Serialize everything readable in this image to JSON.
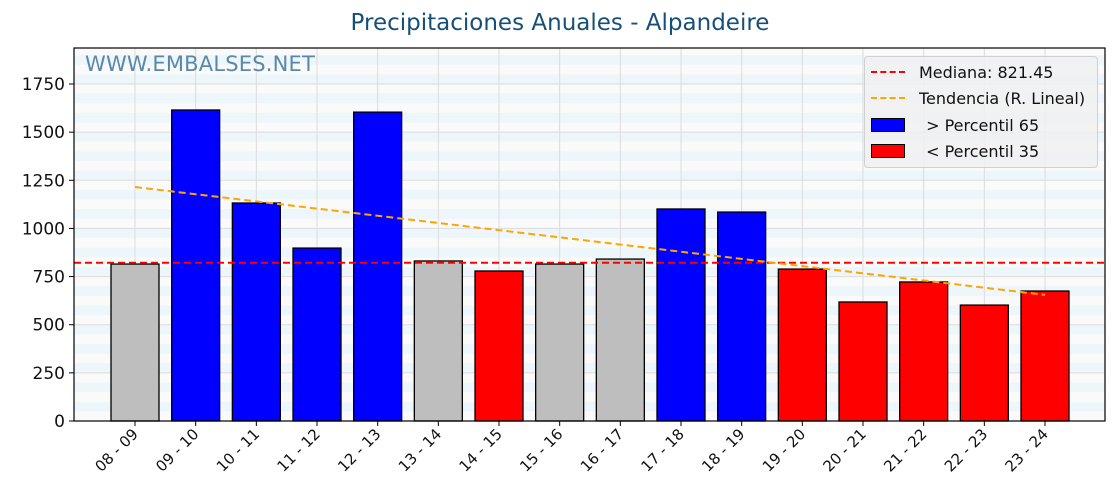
{
  "chart_data": {
    "type": "bar",
    "title": "Precipitaciones Anuales - Alpandeire",
    "watermark": "WWW.EMBALSES.NET",
    "xlabel": "",
    "ylabel": "",
    "ylim": [
      0,
      1930
    ],
    "yticks": [
      0,
      250,
      500,
      750,
      1000,
      1250,
      1500,
      1750
    ],
    "grid": true,
    "legend_position": "upper right",
    "categories": [
      "08 - 09",
      "09 - 10",
      "10 - 11",
      "11 - 12",
      "12 - 13",
      "13 - 14",
      "14 - 15",
      "15 - 16",
      "16 - 17",
      "17 - 18",
      "18 - 19",
      "19 - 20",
      "20 - 21",
      "21 - 22",
      "22 - 23",
      "23 - 24"
    ],
    "values": [
      815,
      1615,
      1132,
      898,
      1604,
      831,
      779,
      815,
      841,
      1101,
      1085,
      789,
      618,
      722,
      602,
      675
    ],
    "bar_classes": [
      "mid",
      "high",
      "high",
      "high",
      "high",
      "mid",
      "low",
      "mid",
      "mid",
      "high",
      "high",
      "low",
      "low",
      "low",
      "low",
      "low"
    ],
    "colors": {
      "high": "#0000ff",
      "low": "#ff0000",
      "mid": "#bebebe",
      "median": "#ff0000",
      "trend": "#ffa500"
    },
    "median": 821.45,
    "trend": {
      "start": 1215,
      "end": 655
    },
    "legend": [
      {
        "label": "Mediana: 821.45",
        "kind": "line",
        "color": "#ff0000"
      },
      {
        "label": "Tendencia (R. Lineal)",
        "kind": "line",
        "color": "#ffa500"
      },
      {
        "label": " > Percentil 65",
        "kind": "patch",
        "color": "#0000ff"
      },
      {
        "label": " < Percentil 35",
        "kind": "patch",
        "color": "#ff0000"
      }
    ]
  }
}
